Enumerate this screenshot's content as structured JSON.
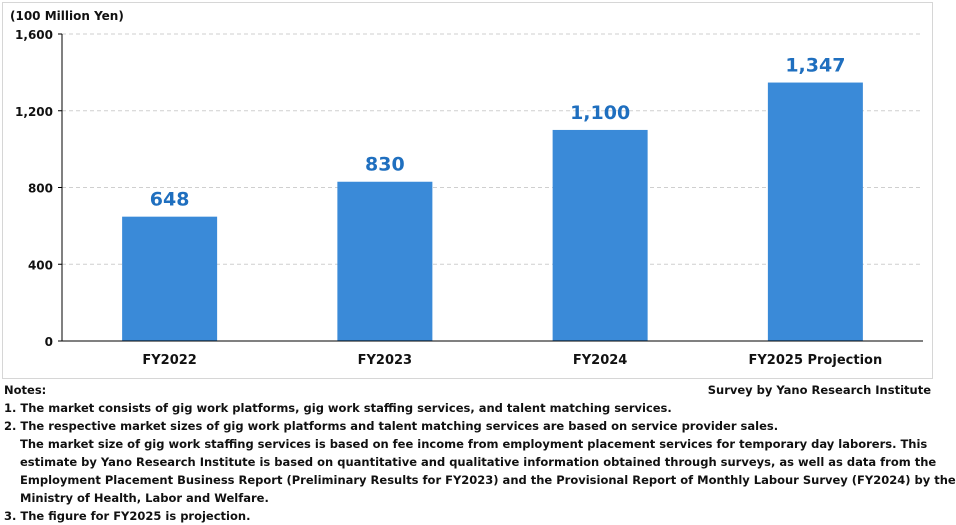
{
  "chart_data": {
    "type": "bar",
    "title": "",
    "ylabel": "(100 Million Yen)",
    "xlabel": "",
    "categories": [
      "FY2022",
      "FY2023",
      "FY2024",
      "FY2025 Projection"
    ],
    "values": [
      648,
      830,
      1100,
      1347
    ],
    "value_labels": [
      "648",
      "830",
      "1,100",
      "1,347"
    ],
    "ylim": [
      0,
      1600
    ],
    "yticks": [
      0,
      400,
      800,
      1200,
      1600
    ],
    "ytick_labels": [
      "0",
      "400",
      "800",
      "1,200",
      "1,600"
    ],
    "grid": true,
    "bar_color": "#3a8ad8",
    "label_color": "#1f6fbf"
  },
  "notes": {
    "heading": "Notes:",
    "source": "Survey by Yano Research Institute",
    "lines": [
      "1. The market consists of gig work platforms, gig work staffing services, and talent matching services.",
      "2. The respective market sizes of gig work platforms and talent matching services are based on service provider sales.",
      "The market size of gig work staffing services is based on fee income from employment placement services for temporary day laborers. This",
      "estimate by Yano Research Institute is based on quantitative and qualitative information obtained through surveys, as well as data from the",
      "Employment Placement Business Report (Preliminary Results for FY2023) and the Provisional Report of Monthly Labour Survey (FY2024) by the",
      "Ministry of Health, Labor and Welfare.",
      "3. The figure for FY2025 is projection."
    ]
  }
}
